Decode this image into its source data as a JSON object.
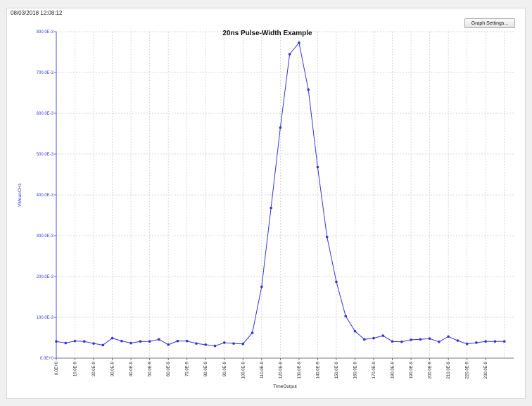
{
  "window": {
    "timestamp": "08/03/2018 12:08:12",
    "settings_button_label": "Graph Settings..."
  },
  "colors": {
    "series": "#3535d6",
    "grid": "#c8c8c8",
    "y_tick_text": "#3a3ad0"
  },
  "chart_data": {
    "type": "line",
    "title": "20ns Pulse-Width Example",
    "xlabel": "TimeOutput",
    "ylabel": "VMeanCH1",
    "xlim": [
      0,
      245
    ],
    "ylim": [
      0,
      0.8
    ],
    "grid": true,
    "y_ticks": [
      {
        "value": 0.0,
        "label": "0.0E+0"
      },
      {
        "value": 0.1,
        "label": "100.0E-3"
      },
      {
        "value": 0.2,
        "label": "200.0E-3"
      },
      {
        "value": 0.3,
        "label": "300.0E-3"
      },
      {
        "value": 0.4,
        "label": "400.0E-3"
      },
      {
        "value": 0.5,
        "label": "500.0E-3"
      },
      {
        "value": 0.6,
        "label": "600.0E-3"
      },
      {
        "value": 0.7,
        "label": "700.0E-3"
      },
      {
        "value": 0.8,
        "label": "800.0E-3"
      }
    ],
    "x_ticks": [
      {
        "value": 0,
        "label": "0.0E+0"
      },
      {
        "value": 10,
        "label": "10.0E-9"
      },
      {
        "value": 20,
        "label": "20.0E-9"
      },
      {
        "value": 30,
        "label": "30.0E-9"
      },
      {
        "value": 40,
        "label": "40.0E-9"
      },
      {
        "value": 50,
        "label": "50.0E-9"
      },
      {
        "value": 60,
        "label": "60.0E-9"
      },
      {
        "value": 70,
        "label": "70.0E-9"
      },
      {
        "value": 80,
        "label": "80.0E-9"
      },
      {
        "value": 90,
        "label": "90.0E-9"
      },
      {
        "value": 100,
        "label": "100.0E-9"
      },
      {
        "value": 110,
        "label": "110.0E-9"
      },
      {
        "value": 120,
        "label": "120.0E-9"
      },
      {
        "value": 130,
        "label": "130.0E-9"
      },
      {
        "value": 140,
        "label": "140.0E-9"
      },
      {
        "value": 150,
        "label": "150.0E-9"
      },
      {
        "value": 160,
        "label": "160.0E-9"
      },
      {
        "value": 170,
        "label": "170.0E-9"
      },
      {
        "value": 180,
        "label": "180.0E-9"
      },
      {
        "value": 190,
        "label": "190.0E-9"
      },
      {
        "value": 200,
        "label": "200.0E-9"
      },
      {
        "value": 210,
        "label": "210.0E-9"
      },
      {
        "value": 220,
        "label": "220.0E-9"
      },
      {
        "value": 230,
        "label": "230.0E-9"
      }
    ],
    "series": [
      {
        "x": [
          0,
          5,
          10,
          15,
          20,
          25,
          30,
          35,
          40,
          45,
          50,
          55,
          60,
          65,
          70,
          75,
          80,
          85,
          90,
          95,
          100,
          105,
          110,
          115,
          120,
          125,
          130,
          135,
          140,
          145,
          150,
          155,
          160,
          165,
          170,
          175,
          180,
          185,
          190,
          195,
          200,
          205,
          210,
          215,
          220,
          225,
          230,
          235,
          240
        ],
        "y": [
          0.041,
          0.037,
          0.042,
          0.041,
          0.036,
          0.032,
          0.049,
          0.042,
          0.037,
          0.041,
          0.041,
          0.046,
          0.033,
          0.042,
          0.042,
          0.036,
          0.033,
          0.03,
          0.038,
          0.036,
          0.035,
          0.062,
          0.175,
          0.368,
          0.565,
          0.745,
          0.773,
          0.658,
          0.468,
          0.297,
          0.187,
          0.103,
          0.066,
          0.046,
          0.049,
          0.055,
          0.041,
          0.04,
          0.045,
          0.046,
          0.048,
          0.04,
          0.053,
          0.043,
          0.035,
          0.038,
          0.041,
          0.041,
          0.041
        ]
      }
    ]
  }
}
